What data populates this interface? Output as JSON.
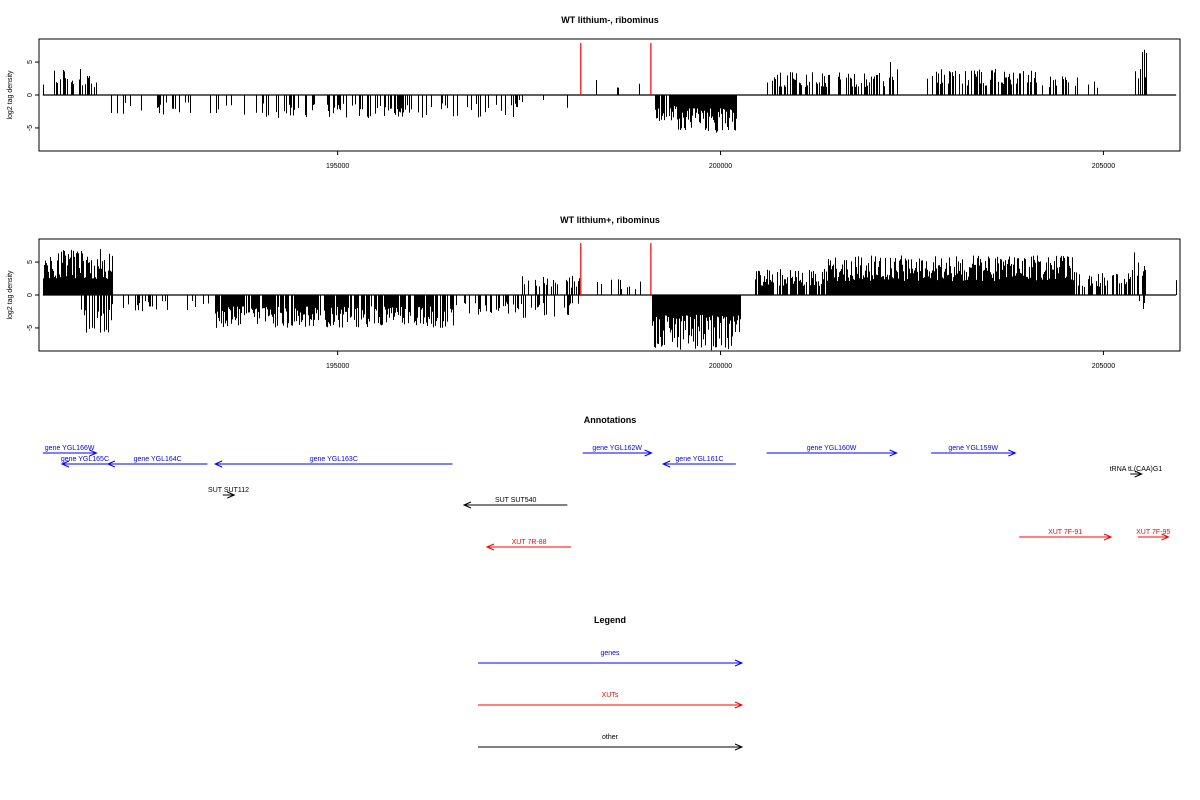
{
  "chart_data": [
    {
      "type": "bar",
      "title": "WT lithium-, ribominus",
      "ylabel": "log2 tag density",
      "xlabel": "",
      "xlim": [
        191100,
        206000
      ],
      "ylim": [
        -8.5,
        8.5
      ],
      "x_ticks": [
        195000,
        200000,
        205000
      ],
      "y_ticks": [
        5,
        0,
        -5
      ],
      "grid": false,
      "marker_lines": {
        "x": [
          198175,
          199090
        ],
        "color": "#ff0000"
      },
      "regions": [
        {
          "x": [
            191150,
            191750
          ],
          "dir": 1,
          "density": 0.45,
          "max": 4.0
        },
        {
          "x": [
            191750,
            191950
          ],
          "dir": 1,
          "density": 0.15,
          "max": 2.0
        },
        {
          "x": [
            191950,
            194000
          ],
          "dir": -1,
          "density": 0.15,
          "max": 3.0
        },
        {
          "x": [
            194000,
            197300
          ],
          "dir": -1,
          "density": 0.25,
          "max": 3.5
        },
        {
          "x": [
            197300,
            198100
          ],
          "dir": -1,
          "density": 0.1,
          "max": 2.0
        },
        {
          "x": [
            198300,
            198950
          ],
          "dir": 1,
          "density": 0.12,
          "max": 2.5
        },
        {
          "x": [
            199150,
            199450
          ],
          "dir": -1,
          "density": 0.9,
          "max": 4.0
        },
        {
          "x": [
            199450,
            200200
          ],
          "dir": -1,
          "density": 1.0,
          "max": 5.8
        },
        {
          "x": [
            200600,
            202200
          ],
          "dir": 1,
          "density": 0.45,
          "max": 3.5
        },
        {
          "x": [
            202200,
            202300
          ],
          "dir": 1,
          "density": 0.3,
          "max": 5.8
        },
        {
          "x": [
            202700,
            204100
          ],
          "dir": 1,
          "density": 0.55,
          "max": 4.0
        },
        {
          "x": [
            204100,
            205000
          ],
          "dir": 1,
          "density": 0.25,
          "max": 3.0
        },
        {
          "x": [
            205400,
            205550
          ],
          "dir": 1,
          "density": 0.4,
          "max": 7.2
        },
        {
          "x": [
            205900,
            205950
          ],
          "dir": -1,
          "density": 0.1,
          "max": 2.0
        }
      ]
    },
    {
      "type": "bar",
      "title": "WT lithium+, ribominus",
      "ylabel": "log2 tag density",
      "xlabel": "",
      "xlim": [
        191100,
        206000
      ],
      "ylim": [
        -8.5,
        8.5
      ],
      "x_ticks": [
        195000,
        200000,
        205000
      ],
      "y_ticks": [
        5,
        0,
        -5
      ],
      "grid": false,
      "marker_lines": {
        "x": [
          198175,
          199090
        ],
        "color": "#ff0000"
      },
      "regions": [
        {
          "x": [
            191150,
            192050
          ],
          "dir": 1,
          "density": 1.0,
          "max": 7.0
        },
        {
          "x": [
            191650,
            192050
          ],
          "dir": -1,
          "density": 0.5,
          "max": 6.0
        },
        {
          "x": [
            192050,
            193400
          ],
          "dir": -1,
          "density": 0.2,
          "max": 2.5
        },
        {
          "x": [
            193400,
            196500
          ],
          "dir": -1,
          "density": 0.8,
          "max": 5.0
        },
        {
          "x": [
            196500,
            197400
          ],
          "dir": -1,
          "density": 0.3,
          "max": 3.0
        },
        {
          "x": [
            197400,
            198150
          ],
          "dir": 1,
          "density": 0.3,
          "max": 3.0
        },
        {
          "x": [
            197400,
            198150
          ],
          "dir": -1,
          "density": 0.3,
          "max": 3.5
        },
        {
          "x": [
            198300,
            198950
          ],
          "dir": 1,
          "density": 0.2,
          "max": 2.5
        },
        {
          "x": [
            199100,
            200250
          ],
          "dir": -1,
          "density": 1.0,
          "max": 8.5
        },
        {
          "x": [
            200450,
            201400
          ],
          "dir": 1,
          "density": 0.8,
          "max": 4.0
        },
        {
          "x": [
            201400,
            202800
          ],
          "dir": 1,
          "density": 1.0,
          "max": 6.0
        },
        {
          "x": [
            202800,
            204600
          ],
          "dir": 1,
          "density": 1.0,
          "max": 6.0
        },
        {
          "x": [
            204600,
            205350
          ],
          "dir": 1,
          "density": 0.5,
          "max": 3.5
        },
        {
          "x": [
            205350,
            205550
          ],
          "dir": 1,
          "density": 0.5,
          "max": 7.0
        },
        {
          "x": [
            205450,
            205550
          ],
          "dir": -1,
          "density": 0.4,
          "max": 2.5
        },
        {
          "x": [
            205900,
            205960
          ],
          "dir": 1,
          "density": 0.3,
          "max": 3.0
        }
      ]
    }
  ],
  "annotations": {
    "title": "Annotations",
    "items": [
      {
        "label": "gene YGL166W",
        "x1": 191150,
        "x2": 191850,
        "dir": 1,
        "row": 0,
        "color": "#0000ff"
      },
      {
        "label": "gene YGL165C",
        "x1": 191400,
        "x2": 192000,
        "dir": -1,
        "row": 1,
        "color": "#0000ff"
      },
      {
        "label": "gene YGL164C",
        "x1": 192000,
        "x2": 193300,
        "dir": -1,
        "row": 1,
        "color": "#0000ff"
      },
      {
        "label": "gene YGL163C",
        "x1": 193400,
        "x2": 196500,
        "dir": -1,
        "row": 1,
        "color": "#0000ff"
      },
      {
        "label": "SUT SUT112",
        "x1": 193500,
        "x2": 193650,
        "dir": 1,
        "row": 3,
        "color": "#000000"
      },
      {
        "label": "SUT SUT540",
        "x1": 196650,
        "x2": 198000,
        "dir": -1,
        "row": 4,
        "color": "#000000"
      },
      {
        "label": "XUT 7R-88",
        "x1": 196950,
        "x2": 198050,
        "dir": -1,
        "row": 5,
        "color": "#ff0000"
      },
      {
        "label": "gene YGL162W",
        "x1": 198200,
        "x2": 199100,
        "dir": 1,
        "row": 0,
        "color": "#0000ff"
      },
      {
        "label": "gene YGL161C",
        "x1": 199250,
        "x2": 200200,
        "dir": -1,
        "row": 1,
        "color": "#0000ff"
      },
      {
        "label": "gene YGL160W",
        "x1": 200600,
        "x2": 202300,
        "dir": 1,
        "row": 0,
        "color": "#0000ff"
      },
      {
        "label": "gene YGL159W",
        "x1": 202750,
        "x2": 203850,
        "dir": 1,
        "row": 0,
        "color": "#0000ff"
      },
      {
        "label": "tRNA tL(CAA)G1",
        "x1": 205350,
        "x2": 205500,
        "dir": 1,
        "row": 2,
        "color": "#000000"
      },
      {
        "label": "XUT 7F-91",
        "x1": 203900,
        "x2": 205100,
        "dir": 1,
        "row": 6,
        "color": "#ff0000"
      },
      {
        "label": "XUT 7F-95",
        "x1": 205450,
        "x2": 205850,
        "dir": 1,
        "row": 6,
        "color": "#ff0000"
      }
    ]
  },
  "legend": {
    "title": "Legend",
    "items": [
      {
        "label": "genes",
        "color": "#0000ff"
      },
      {
        "label": "XUTs",
        "color": "#ff0000"
      },
      {
        "label": "other",
        "color": "#000000"
      }
    ]
  }
}
